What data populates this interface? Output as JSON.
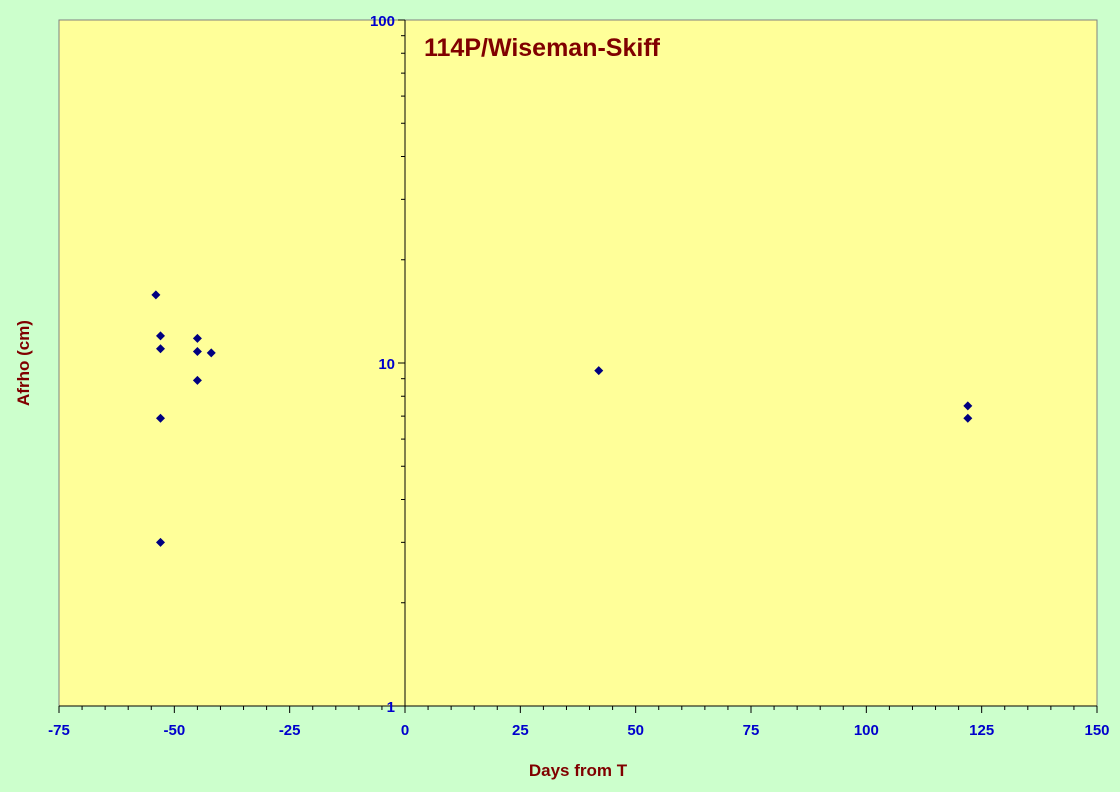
{
  "chart_data": {
    "type": "scatter",
    "title": "114P/Wiseman-Skiff",
    "xlabel": "Days from T",
    "ylabel": "Afrho (cm)",
    "x_scale": "linear",
    "y_scale": "log",
    "xlim": [
      -75,
      150
    ],
    "ylim": [
      1,
      100
    ],
    "x_ticks": [
      -75,
      -50,
      -25,
      0,
      25,
      50,
      75,
      100,
      125,
      150
    ],
    "x_tick_labels": [
      "-75",
      "-50",
      "-25",
      "0",
      "25",
      "50",
      "75",
      "100",
      "125",
      "150"
    ],
    "y_ticks": [
      1,
      10,
      100
    ],
    "y_tick_labels": [
      "1",
      "10",
      "100"
    ],
    "grid": false,
    "legend": "none",
    "series": [
      {
        "marker": "diamond",
        "points": [
          {
            "x": -54,
            "y": 15.8
          },
          {
            "x": -53,
            "y": 12.0
          },
          {
            "x": -53,
            "y": 11.0
          },
          {
            "x": -53,
            "y": 6.9
          },
          {
            "x": -53,
            "y": 3.0
          },
          {
            "x": -45,
            "y": 11.8
          },
          {
            "x": -45,
            "y": 10.8
          },
          {
            "x": -45,
            "y": 8.9
          },
          {
            "x": -42,
            "y": 10.7
          },
          {
            "x": 42,
            "y": 9.5
          },
          {
            "x": 122,
            "y": 7.5
          },
          {
            "x": 122,
            "y": 6.9
          }
        ]
      }
    ]
  },
  "colors": {
    "page_background": "#ccffcc",
    "plot_background": "#ffff99",
    "marker": "#000080",
    "tick_labels": "#0000cc",
    "titles": "#800000",
    "axis_lines": "#000000"
  }
}
